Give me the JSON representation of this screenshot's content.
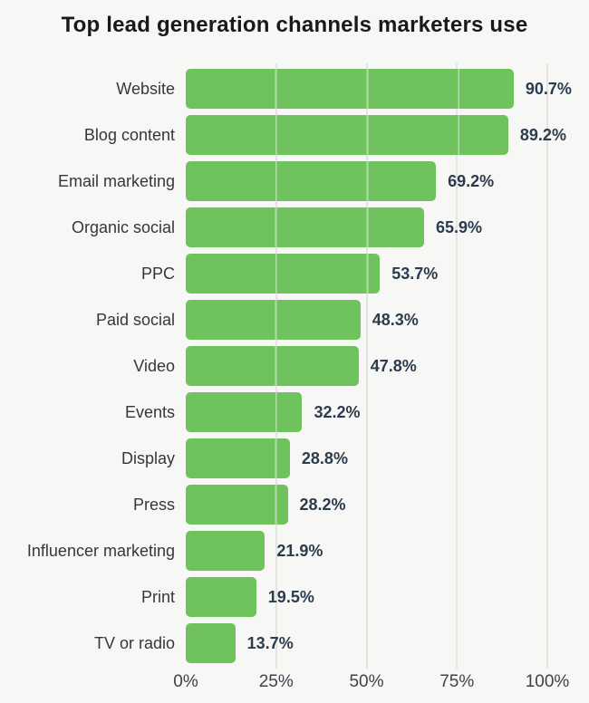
{
  "title": "Top lead generation channels marketers use",
  "chart_data": {
    "type": "bar",
    "orientation": "horizontal",
    "title": "Top lead generation channels marketers use",
    "categories": [
      "Website",
      "Blog content",
      "Email marketing",
      "Organic social",
      "PPC",
      "Paid social",
      "Video",
      "Events",
      "Display",
      "Press",
      "Influencer marketing",
      "Print",
      "TV or radio"
    ],
    "values": [
      90.7,
      89.2,
      69.2,
      65.9,
      53.7,
      48.3,
      47.8,
      32.2,
      28.8,
      28.2,
      21.9,
      19.5,
      13.7
    ],
    "value_labels": [
      "90.7%",
      "89.2%",
      "69.2%",
      "65.9%",
      "53.7%",
      "48.3%",
      "47.8%",
      "32.2%",
      "28.8%",
      "28.2%",
      "21.9%",
      "19.5%",
      "13.7%"
    ],
    "x_ticks": [
      "0%",
      "25%",
      "50%",
      "75%",
      "100%"
    ],
    "x_tick_values": [
      0,
      25,
      50,
      75,
      100
    ],
    "xlim": [
      0,
      100
    ],
    "xlabel": "",
    "ylabel": "",
    "grid": "vertical",
    "legend": "none",
    "bar_color": "#70c35c",
    "background_color": "#f7f7f5",
    "title_color": "#191919",
    "label_color": "#32383d",
    "value_color": "#2c3c4e",
    "tick_color": "#3c434b",
    "gridline_color": "#e4e4e1"
  }
}
